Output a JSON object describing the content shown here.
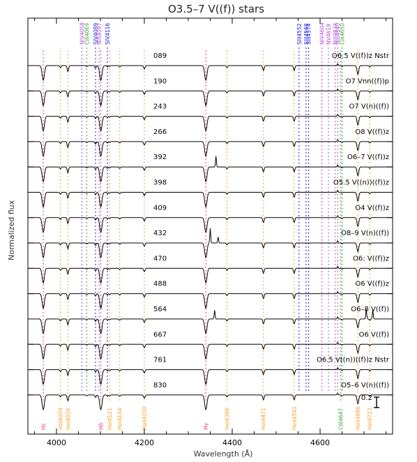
{
  "chart_data": {
    "type": "line",
    "title": "O3.5–7 V((f)) stars",
    "xlabel": "Wavelength (Å)",
    "ylabel": "Normalized flux",
    "xlim": [
      3935,
      4765
    ],
    "x_ticks": [
      4000,
      4200,
      4400,
      4600
    ],
    "scale_bar": {
      "label": "0.2",
      "value": 0.2
    },
    "grid": false,
    "colors": {
      "spectrum": "#000000",
      "He": "#ff2a6d",
      "HeI": "#ff9f2a",
      "HeII": "#ff9f2a",
      "Si": "#1616ee",
      "N": "#b24cd8",
      "C": "#35a835"
    },
    "series": [
      {
        "name": "089",
        "sptype": "O6.5 V((f))z Nstr"
      },
      {
        "name": "190",
        "sptype": "O7 Vnn((f))p"
      },
      {
        "name": "243",
        "sptype": "O7 V(n)((f))"
      },
      {
        "name": "266",
        "sptype": "O8 V((f))z"
      },
      {
        "name": "392",
        "sptype": "O6–7 V((f))z"
      },
      {
        "name": "398",
        "sptype": "O5.5 V((n))((f))z"
      },
      {
        "name": "409",
        "sptype": "O4 V((f))z"
      },
      {
        "name": "432",
        "sptype": "O8–9 V(n)((f))"
      },
      {
        "name": "470",
        "sptype": "O6: V((f))z"
      },
      {
        "name": "488",
        "sptype": "O6 V((f))z"
      },
      {
        "name": "564",
        "sptype": "O6–8 V((f))"
      },
      {
        "name": "667",
        "sptype": "O6 V((f))"
      },
      {
        "name": "761",
        "sptype": "O6.5 V((n))((f))z Nstr"
      },
      {
        "name": "830",
        "sptype": "O5–6 V(n)((f))"
      }
    ],
    "lines_top": [
      {
        "label": "NIV4058",
        "wavelength": 4058,
        "group": "N"
      },
      {
        "label": "CIII4069",
        "wavelength": 4069,
        "group": "C"
      },
      {
        "label": "SIV4089",
        "wavelength": 4089,
        "group": "Si"
      },
      {
        "label": "NIII4097",
        "wavelength": 4097,
        "group": "N"
      },
      {
        "label": "SIV4116",
        "wavelength": 4116,
        "group": "Si"
      },
      {
        "label": "SIII4552",
        "wavelength": 4552,
        "group": "Si"
      },
      {
        "label": "SIII4568",
        "wavelength": 4568,
        "group": "Si"
      },
      {
        "label": "SIII4574",
        "wavelength": 4574,
        "group": "Si"
      },
      {
        "label": "NIV4604",
        "wavelength": 4604,
        "group": "N"
      },
      {
        "label": "NV4619",
        "wavelength": 4619,
        "group": "N"
      },
      {
        "label": "NIII4634",
        "wavelength": 4634,
        "group": "N"
      },
      {
        "label": "NIII4640",
        "wavelength": 4640,
        "group": "N"
      },
      {
        "label": "CIII4650",
        "wavelength": 4650,
        "group": "C"
      }
    ],
    "lines_bottom": [
      {
        "label": "Hε",
        "wavelength": 3970,
        "group": "He"
      },
      {
        "label": "HeI4009",
        "wavelength": 4009,
        "group": "HeI"
      },
      {
        "label": "HeI4026",
        "wavelength": 4026,
        "group": "HeI"
      },
      {
        "label": "Hδ",
        "wavelength": 4101,
        "group": "He"
      },
      {
        "label": "HeI4121",
        "wavelength": 4121,
        "group": "HeI"
      },
      {
        "label": "HeI4144",
        "wavelength": 4144,
        "group": "HeI"
      },
      {
        "label": "HeII4200",
        "wavelength": 4200,
        "group": "HeII"
      },
      {
        "label": "Hγ",
        "wavelength": 4340,
        "group": "He"
      },
      {
        "label": "HeI4388",
        "wavelength": 4388,
        "group": "HeI"
      },
      {
        "label": "HeI4471",
        "wavelength": 4471,
        "group": "HeI"
      },
      {
        "label": "HeII4541",
        "wavelength": 4541,
        "group": "HeII"
      },
      {
        "label": "CIII4647",
        "wavelength": 4647,
        "group": "C"
      },
      {
        "label": "HeII4686",
        "wavelength": 4686,
        "group": "HeII"
      },
      {
        "label": "HeI4713",
        "wavelength": 4713,
        "group": "HeI"
      }
    ],
    "features": [
      {
        "center": 3970,
        "depth": 0.3,
        "width": 2.6
      },
      {
        "center": 4009,
        "depth": 0.04,
        "width": 1.4
      },
      {
        "center": 4026,
        "depth": 0.12,
        "width": 1.6
      },
      {
        "center": 4069,
        "depth": 0.02,
        "width": 1.2
      },
      {
        "center": 4089,
        "depth": 0.05,
        "width": 1.4
      },
      {
        "center": 4101,
        "depth": 0.3,
        "width": 2.6
      },
      {
        "center": 4116,
        "depth": 0.03,
        "width": 1.2
      },
      {
        "center": 4121,
        "depth": 0.02,
        "width": 1.2
      },
      {
        "center": 4144,
        "depth": 0.03,
        "width": 1.3
      },
      {
        "center": 4200,
        "depth": 0.07,
        "width": 1.6
      },
      {
        "center": 4340,
        "depth": 0.3,
        "width": 2.6
      },
      {
        "center": 4388,
        "depth": 0.04,
        "width": 1.5
      },
      {
        "center": 4471,
        "depth": 0.1,
        "width": 1.6
      },
      {
        "center": 4541,
        "depth": 0.1,
        "width": 1.6
      },
      {
        "center": 4640,
        "depth": -0.04,
        "width": 1.0
      },
      {
        "center": 4650,
        "depth": 0.02,
        "width": 1.2
      },
      {
        "center": 4686,
        "depth": 0.18,
        "width": 2.0
      },
      {
        "center": 4713,
        "depth": 0.03,
        "width": 1.3
      }
    ],
    "emission": [
      {
        "series": "392",
        "center": 4363,
        "height": 0.22
      },
      {
        "series": "432",
        "center": 4350,
        "height": 0.3
      },
      {
        "series": "432",
        "center": 4368,
        "height": 0.12
      },
      {
        "series": "564",
        "center": 4360,
        "height": 0.18
      },
      {
        "series": "564",
        "center": 4705,
        "height": 0.2
      },
      {
        "series": "564",
        "center": 4720,
        "height": 0.18
      }
    ]
  }
}
